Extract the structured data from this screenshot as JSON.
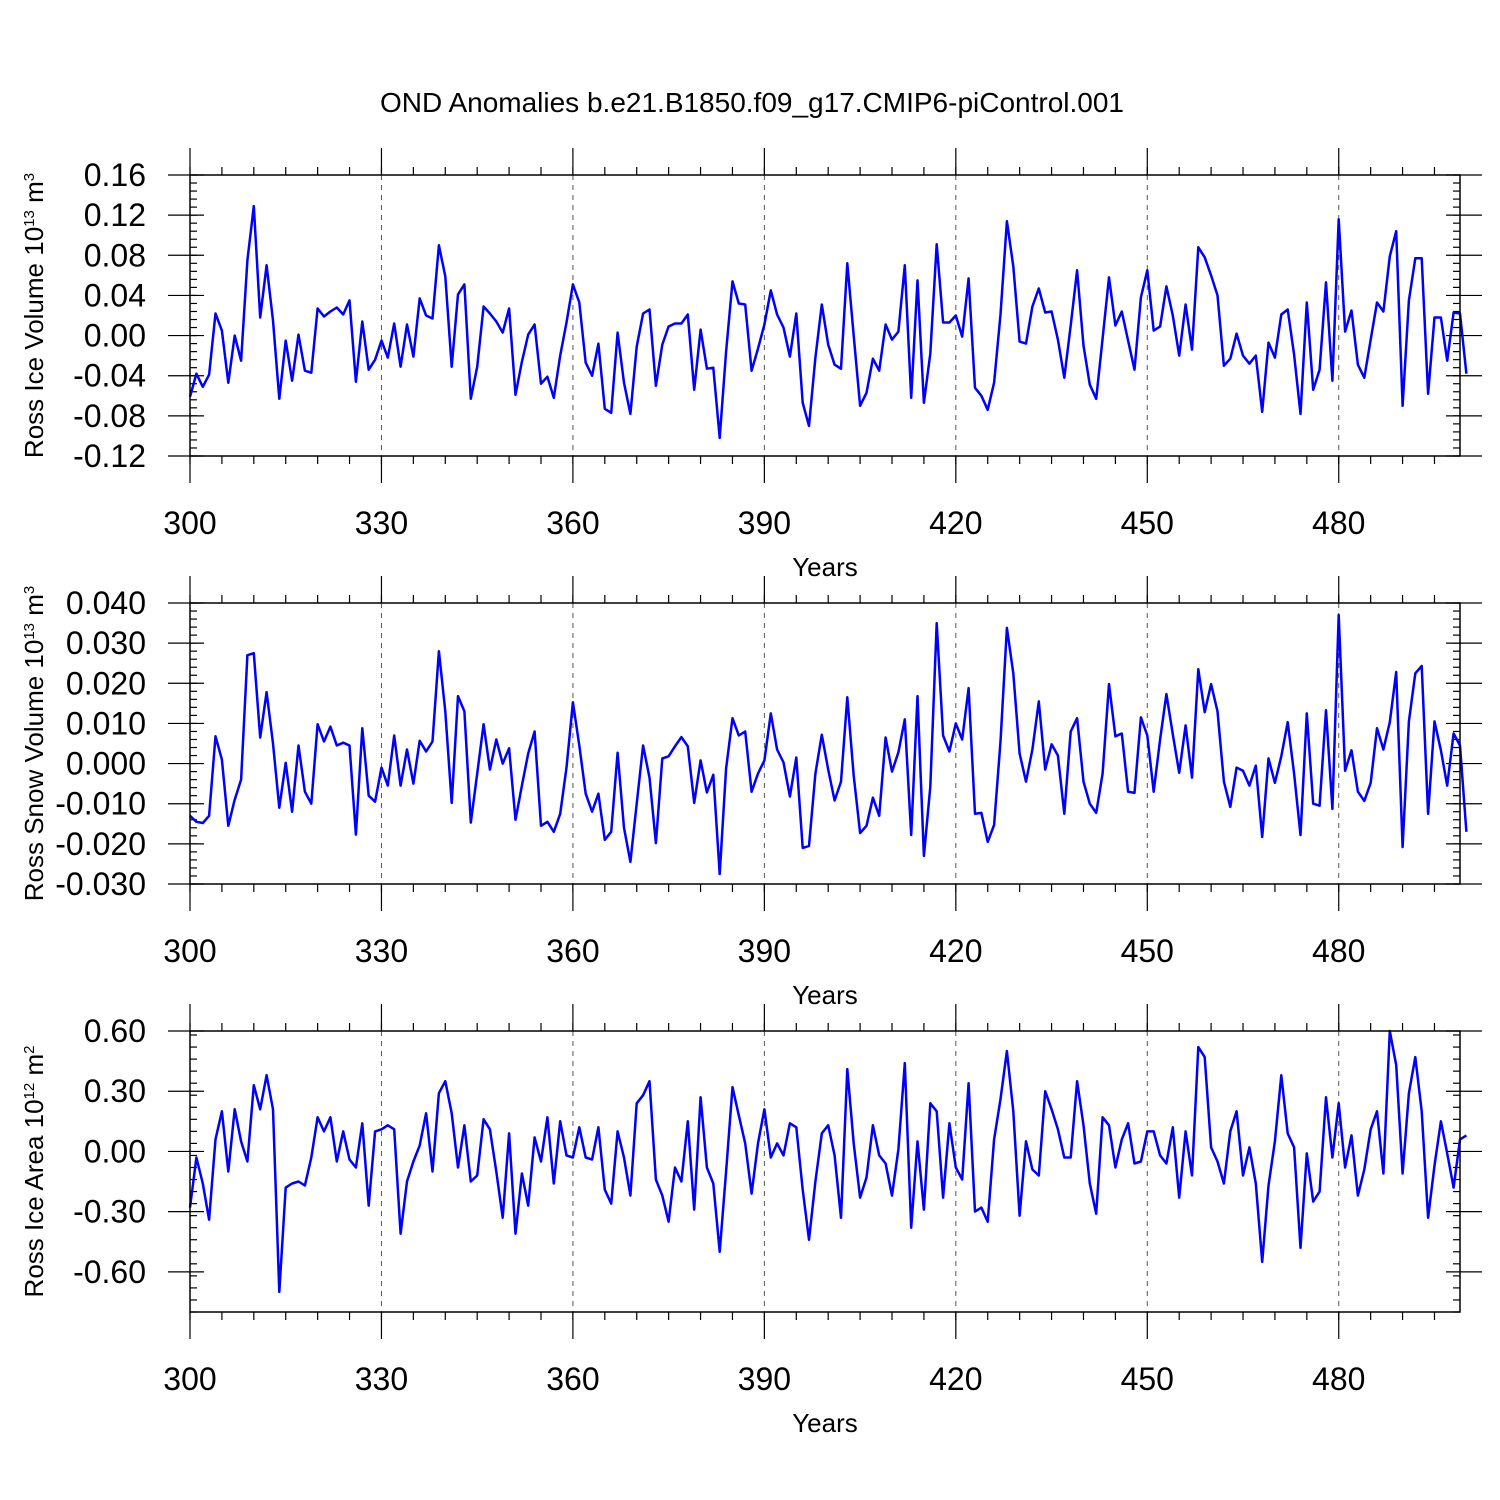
{
  "title": "OND Anomalies b.e21.B1850.f09_g17.CMIP6-piControl.001",
  "series_color": "#0000ff",
  "chart_data": [
    {
      "type": "line",
      "ylabel": {
        "main": "Ross Ice Volume 10",
        "sup": "13",
        "unit": " m",
        "unitsup": "3"
      },
      "xlabel": "Years",
      "xlim": [
        300,
        499
      ],
      "ylim": [
        -0.12,
        0.16
      ],
      "yticks": [
        "0.16",
        "0.12",
        "0.08",
        "0.04",
        "0.00",
        "-0.04",
        "-0.08",
        "-0.12"
      ],
      "ytick_values": [
        0.16,
        0.12,
        0.08,
        0.04,
        0.0,
        -0.04,
        -0.08,
        -0.12
      ],
      "xticks": [
        "300",
        "330",
        "360",
        "390",
        "420",
        "450",
        "480"
      ],
      "xtick_values": [
        300,
        330,
        360,
        390,
        420,
        450,
        480
      ],
      "grid_x": [
        330,
        360,
        390,
        420,
        450,
        480
      ],
      "values": [
        -0.061,
        -0.038,
        -0.051,
        -0.039,
        0.022,
        0.005,
        -0.047,
        0.0,
        -0.025,
        0.075,
        0.129,
        0.018,
        0.07,
        0.015,
        -0.063,
        -0.005,
        -0.045,
        0.001,
        -0.035,
        -0.037,
        0.027,
        0.019,
        0.024,
        0.028,
        0.021,
        0.035,
        -0.046,
        0.014,
        -0.034,
        -0.024,
        -0.005,
        -0.022,
        0.012,
        -0.031,
        0.011,
        -0.021,
        0.037,
        0.02,
        0.017,
        0.09,
        0.059,
        -0.031,
        0.041,
        0.051,
        -0.063,
        -0.031,
        0.029,
        0.022,
        0.014,
        0.003,
        0.027,
        -0.059,
        -0.026,
        0.001,
        0.011,
        -0.048,
        -0.041,
        -0.062,
        -0.02,
        0.013,
        0.051,
        0.033,
        -0.027,
        -0.04,
        -0.008,
        -0.073,
        -0.077,
        0.003,
        -0.047,
        -0.078,
        -0.011,
        0.022,
        0.026,
        -0.05,
        -0.009,
        0.009,
        0.012,
        0.012,
        0.021,
        -0.054,
        0.006,
        -0.033,
        -0.032,
        -0.102,
        -0.016,
        0.054,
        0.032,
        0.031,
        -0.035,
        -0.013,
        0.011,
        0.045,
        0.021,
        0.008,
        -0.021,
        0.022,
        -0.067,
        -0.09,
        -0.022,
        0.031,
        -0.009,
        -0.029,
        -0.033,
        0.072,
        0.0,
        -0.07,
        -0.057,
        -0.023,
        -0.035,
        0.011,
        -0.004,
        0.004,
        0.07,
        -0.062,
        0.055,
        -0.067,
        -0.018,
        0.091,
        0.013,
        0.013,
        0.02,
        -0.001,
        0.057,
        -0.052,
        -0.06,
        -0.074,
        -0.047,
        0.021,
        0.114,
        0.069,
        -0.006,
        -0.008,
        0.029,
        0.047,
        0.023,
        0.024,
        -0.004,
        -0.042,
        0.01,
        0.065,
        -0.01,
        -0.049,
        -0.063,
        -0.003,
        0.058,
        0.01,
        0.024,
        -0.005,
        -0.034,
        0.038,
        0.065,
        0.005,
        0.009,
        0.049,
        0.02,
        -0.02,
        0.031,
        -0.014,
        0.088,
        0.078,
        0.06,
        0.04,
        -0.03,
        -0.023,
        0.002,
        -0.02,
        -0.028,
        -0.02,
        -0.076,
        -0.007,
        -0.022,
        0.021,
        0.026,
        -0.019,
        -0.078,
        0.033,
        -0.054,
        -0.034,
        0.053,
        -0.045,
        0.116,
        0.004,
        0.025,
        -0.029,
        -0.042,
        -0.004,
        0.033,
        0.024,
        0.079,
        0.104,
        -0.07,
        0.035,
        0.077,
        0.077,
        -0.058,
        0.018,
        0.018,
        -0.025,
        0.023,
        0.022,
        -0.038
      ]
    },
    {
      "type": "line",
      "ylabel": {
        "main": "Ross Snow Volume 10",
        "sup": "13",
        "unit": " m",
        "unitsup": "3"
      },
      "xlabel": "Years",
      "xlim": [
        300,
        499
      ],
      "ylim": [
        -0.03,
        0.04
      ],
      "yticks": [
        "0.040",
        "0.030",
        "0.020",
        "0.010",
        "0.000",
        "-0.010",
        "-0.020",
        "-0.030"
      ],
      "ytick_values": [
        0.04,
        0.03,
        0.02,
        0.01,
        0.0,
        -0.01,
        -0.02,
        -0.03
      ],
      "xticks": [
        "300",
        "330",
        "360",
        "390",
        "420",
        "450",
        "480"
      ],
      "xtick_values": [
        300,
        330,
        360,
        390,
        420,
        450,
        480
      ],
      "grid_x": [
        330,
        360,
        390,
        420,
        450,
        480
      ],
      "values": [
        -0.013,
        -0.0145,
        -0.0148,
        -0.013,
        0.0068,
        0.001,
        -0.0155,
        -0.009,
        -0.004,
        0.027,
        0.0275,
        0.0065,
        0.0178,
        0.005,
        -0.011,
        0.0002,
        -0.012,
        0.0045,
        -0.007,
        -0.01,
        0.0098,
        0.0055,
        0.0092,
        0.0045,
        0.0052,
        0.0045,
        -0.0177,
        0.0088,
        -0.008,
        -0.0095,
        -0.001,
        -0.0055,
        0.007,
        -0.0055,
        0.0035,
        -0.005,
        0.0057,
        0.003,
        0.0055,
        0.028,
        0.013,
        -0.0098,
        0.0168,
        0.013,
        -0.0147,
        -0.0025,
        0.0098,
        -0.0015,
        0.006,
        0.0,
        0.0038,
        -0.014,
        -0.0055,
        0.0025,
        0.008,
        -0.0155,
        -0.0145,
        -0.017,
        -0.0125,
        -0.001,
        0.0153,
        0.0045,
        -0.0075,
        -0.012,
        -0.0075,
        -0.019,
        -0.017,
        0.0027,
        -0.016,
        -0.0245,
        -0.01,
        0.0045,
        -0.0035,
        -0.0198,
        0.0013,
        0.0018,
        0.0043,
        0.0066,
        0.0043,
        -0.0098,
        0.0008,
        -0.0072,
        -0.0028,
        -0.0275,
        -0.0012,
        0.0113,
        0.007,
        0.008,
        -0.007,
        -0.0025,
        0.0008,
        0.0125,
        0.0035,
        0.0003,
        -0.0082,
        0.0015,
        -0.021,
        -0.0205,
        -0.0025,
        0.0072,
        -0.0015,
        -0.0092,
        -0.0045,
        0.0165,
        -0.003,
        -0.0173,
        -0.0155,
        -0.0085,
        -0.013,
        0.0065,
        -0.002,
        0.0028,
        0.011,
        -0.0178,
        0.0168,
        -0.023,
        -0.0058,
        0.035,
        0.007,
        0.003,
        0.01,
        0.006,
        0.0188,
        -0.0125,
        -0.0123,
        -0.0195,
        -0.0153,
        0.0055,
        0.0338,
        0.0225,
        0.0025,
        -0.0045,
        0.0035,
        0.0155,
        -0.0015,
        0.0048,
        0.002,
        -0.0125,
        0.008,
        0.0113,
        -0.0045,
        -0.01,
        -0.0123,
        -0.0025,
        0.0198,
        0.0068,
        0.0075,
        -0.007,
        -0.0073,
        0.0115,
        0.007,
        -0.007,
        0.006,
        0.0173,
        0.0073,
        -0.0023,
        0.0095,
        -0.0035,
        0.0235,
        0.0128,
        0.0198,
        0.013,
        -0.0045,
        -0.0108,
        -0.001,
        -0.0018,
        -0.0055,
        -0.0005,
        -0.0183,
        0.0013,
        -0.0048,
        0.0018,
        0.0103,
        -0.0025,
        -0.0178,
        0.0125,
        -0.01,
        -0.0105,
        0.0133,
        -0.0113,
        0.037,
        -0.0018,
        0.0033,
        -0.007,
        -0.0093,
        -0.0048,
        0.0088,
        0.0035,
        0.0103,
        0.0228,
        -0.0208,
        0.0105,
        0.0225,
        0.0243,
        -0.0125,
        0.0105,
        0.0033,
        -0.0055,
        0.0075,
        0.0045,
        -0.017
      ]
    },
    {
      "type": "line",
      "ylabel": {
        "main": "Ross Ice Area 10",
        "sup": "12",
        "unit": " m",
        "unitsup": "2"
      },
      "xlabel": "Years",
      "xlim": [
        300,
        499
      ],
      "ylim": [
        -0.8,
        0.6
      ],
      "yticks": [
        "0.60",
        "0.30",
        "0.00",
        "-0.30",
        "-0.60"
      ],
      "ytick_values": [
        0.6,
        0.3,
        0.0,
        -0.3,
        -0.6
      ],
      "xticks": [
        "300",
        "330",
        "360",
        "390",
        "420",
        "450",
        "480"
      ],
      "xtick_values": [
        300,
        330,
        360,
        390,
        420,
        450,
        480
      ],
      "grid_x": [
        330,
        360,
        390,
        420,
        450,
        480
      ],
      "values": [
        -0.28,
        -0.03,
        -0.16,
        -0.34,
        0.06,
        0.2,
        -0.1,
        0.21,
        0.05,
        -0.05,
        0.33,
        0.21,
        0.38,
        0.21,
        -0.7,
        -0.18,
        -0.16,
        -0.15,
        -0.17,
        -0.03,
        0.17,
        0.1,
        0.17,
        -0.05,
        0.1,
        -0.04,
        -0.08,
        0.14,
        -0.27,
        0.1,
        0.11,
        0.13,
        0.11,
        -0.41,
        -0.15,
        -0.05,
        0.03,
        0.19,
        -0.1,
        0.29,
        0.35,
        0.19,
        -0.08,
        0.13,
        -0.15,
        -0.12,
        0.16,
        0.11,
        -0.1,
        -0.33,
        0.09,
        -0.41,
        -0.11,
        -0.27,
        0.07,
        -0.05,
        0.17,
        -0.16,
        0.15,
        -0.02,
        -0.03,
        0.12,
        -0.03,
        -0.04,
        0.12,
        -0.19,
        -0.26,
        0.1,
        -0.03,
        -0.22,
        0.24,
        0.28,
        0.35,
        -0.14,
        -0.22,
        -0.35,
        -0.08,
        -0.15,
        0.15,
        -0.29,
        0.27,
        -0.08,
        -0.16,
        -0.5,
        -0.1,
        0.32,
        0.18,
        0.04,
        -0.21,
        0.04,
        0.21,
        -0.03,
        0.04,
        -0.02,
        0.14,
        0.12,
        -0.19,
        -0.44,
        -0.15,
        0.09,
        0.13,
        -0.02,
        -0.33,
        0.41,
        0.04,
        -0.23,
        -0.13,
        0.13,
        -0.02,
        -0.06,
        -0.22,
        0.01,
        0.44,
        -0.38,
        0.05,
        -0.29,
        0.24,
        0.2,
        -0.23,
        0.14,
        -0.08,
        -0.14,
        0.34,
        -0.3,
        -0.28,
        -0.35,
        0.06,
        0.26,
        0.5,
        0.2,
        -0.32,
        0.05,
        -0.09,
        -0.12,
        0.3,
        0.21,
        0.11,
        -0.03,
        -0.03,
        0.35,
        0.13,
        -0.16,
        -0.31,
        0.17,
        0.13,
        -0.08,
        0.06,
        0.14,
        -0.06,
        -0.05,
        0.1,
        0.1,
        -0.02,
        -0.06,
        0.12,
        -0.23,
        0.1,
        -0.12,
        0.52,
        0.47,
        0.02,
        -0.05,
        -0.16,
        0.1,
        0.2,
        -0.12,
        0.02,
        -0.16,
        -0.55,
        -0.17,
        0.05,
        0.38,
        0.09,
        0.02,
        -0.48,
        -0.01,
        -0.25,
        -0.2,
        0.27,
        -0.03,
        0.24,
        -0.08,
        0.08,
        -0.22,
        -0.09,
        0.11,
        0.2,
        -0.11,
        0.6,
        0.43,
        -0.11,
        0.29,
        0.47,
        0.2,
        -0.33,
        -0.07,
        0.15,
        -0.01,
        -0.18,
        0.06,
        0.08
      ]
    }
  ]
}
